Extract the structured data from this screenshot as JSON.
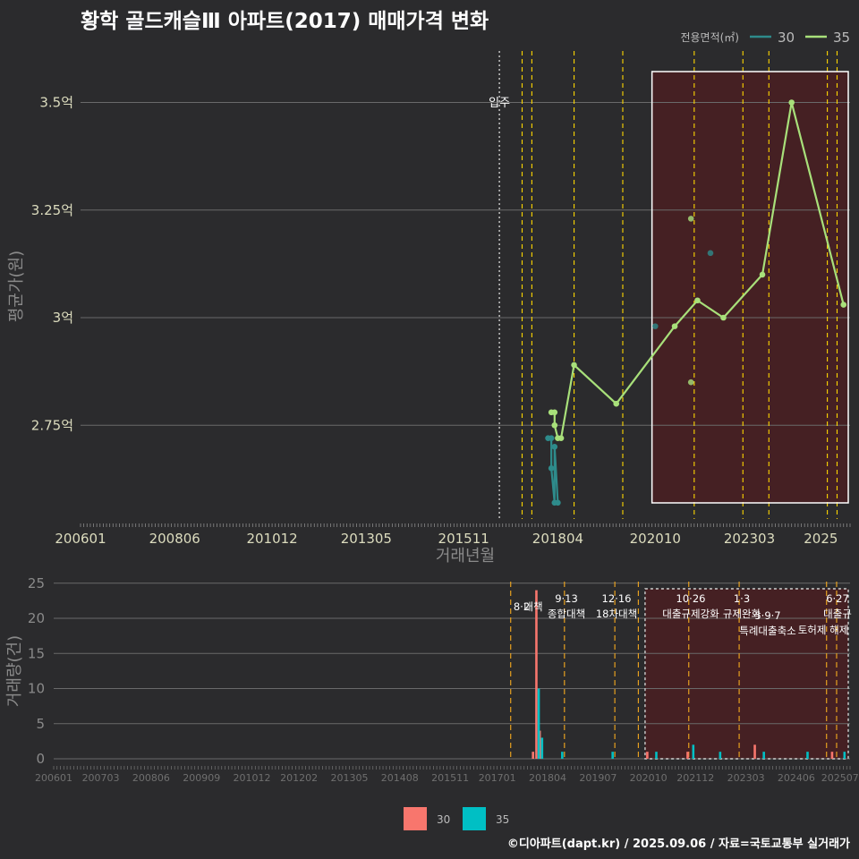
{
  "title": "황학 골드캐슬Ⅲ 아파트(2017) 매매가격 변화",
  "footer": "©디아파트(dapt.kr) / 2025.09.06 / 자료=국토교통부 실거래가",
  "colors": {
    "background": "#2b2b2d",
    "series_30_price": "#2e8b8b",
    "series_35_price": "#a8e07a",
    "series_30_volume": "#f8766d",
    "series_35_volume": "#00bfc4",
    "policy_line_top": "#ffd700",
    "policy_line_bottom": "#e6a020",
    "highlight_fill": "#4a1f22"
  },
  "price_chart": {
    "ylabel": "평균가(원)",
    "xlabel": "거래년월",
    "legend_title": "전용면적(㎡)",
    "legend": [
      "30",
      "35"
    ],
    "y_ticks": [
      {
        "v": 2.75,
        "label": "2.75억"
      },
      {
        "v": 3.0,
        "label": "3억"
      },
      {
        "v": 3.25,
        "label": "3.25억"
      },
      {
        "v": 3.5,
        "label": "3.5억"
      }
    ],
    "x_ticks": [
      "200601",
      "200806",
      "201012",
      "201305",
      "201511",
      "201804",
      "202010",
      "202303",
      "2025"
    ],
    "ann_move_in": "입주"
  },
  "volume_chart": {
    "ylabel": "거래량(건)",
    "y_ticks": [
      "0",
      "5",
      "10",
      "15",
      "20",
      "25"
    ],
    "x_ticks": [
      "200601",
      "200703",
      "200806",
      "200909",
      "201012",
      "201202",
      "201305",
      "201408",
      "201511",
      "201701",
      "201804",
      "201907",
      "202010",
      "202112",
      "202303",
      "202406",
      "202507"
    ],
    "legend": [
      "30",
      "35"
    ],
    "annotations": [
      {
        "date": "8·2",
        "text": "대책"
      },
      {
        "date": "9·13",
        "text": "종합대책"
      },
      {
        "date": "12·16",
        "text": "18차대책"
      },
      {
        "date": "10·26",
        "text": "대출규제강화"
      },
      {
        "date": "1·3",
        "text": "규제완화"
      },
      {
        "date": "5·9·7",
        "text": "특례대출축소"
      },
      {
        "date": "",
        "text": "토허제 해제"
      },
      {
        "date": "6·27",
        "text": "대출규"
      }
    ]
  },
  "chart_data": [
    {
      "type": "line",
      "title": "황학 골드캐슬Ⅲ 아파트(2017) 매매가격 변화",
      "xlabel": "거래년월",
      "ylabel": "평균가(원)",
      "x_range": [
        "2006-01",
        "2025-09"
      ],
      "y_unit": "억",
      "series": [
        {
          "name": "30",
          "points": [
            [
              "2018-01",
              2.72
            ],
            [
              "2018-02",
              2.72
            ],
            [
              "2018-02",
              2.65
            ],
            [
              "2018-03",
              2.57
            ],
            [
              "2018-03",
              2.7
            ],
            [
              "2018-04",
              2.57
            ]
          ]
        },
        {
          "name": "35",
          "points": [
            [
              "2018-02",
              2.78
            ],
            [
              "2018-03",
              2.78
            ],
            [
              "2018-03",
              2.75
            ],
            [
              "2018-04",
              2.72
            ],
            [
              "2018-05",
              2.72
            ],
            [
              "2018-09",
              2.89
            ],
            [
              "2019-10",
              2.8
            ],
            [
              "2021-04",
              2.98
            ],
            [
              "2021-11",
              3.04
            ],
            [
              "2022-07",
              3.0
            ],
            [
              "2023-07",
              3.1
            ],
            [
              "2024-04",
              3.5
            ],
            [
              "2025-08",
              3.03
            ]
          ]
        }
      ],
      "scatter_points": [
        {
          "series": "30",
          "x": "2020-10",
          "y": 2.98
        },
        {
          "series": "30",
          "x": "2022-03",
          "y": 3.15
        },
        {
          "series": "35",
          "x": "2021-09",
          "y": 3.23
        },
        {
          "series": "35",
          "x": "2021-09",
          "y": 2.85
        }
      ],
      "vlines": [
        "2017-05",
        "2017-08",
        "2018-09",
        "2019-12",
        "2021-10",
        "2023-01",
        "2023-09",
        "2025-03",
        "2025-06"
      ],
      "move_in_date": "2016-10",
      "highlight_range": [
        "2020-09",
        "2025-09"
      ]
    },
    {
      "type": "bar",
      "ylabel": "거래량(건)",
      "ylim": [
        0,
        25
      ],
      "series": [
        {
          "name": "30",
          "points": [
            [
              "2017-12",
              1
            ],
            [
              "2018-01",
              24
            ],
            [
              "2018-02",
              4
            ],
            [
              "2020-10",
              1
            ],
            [
              "2021-10",
              1
            ],
            [
              "2023-06",
              2
            ],
            [
              "2025-05",
              1
            ]
          ]
        },
        {
          "name": "35",
          "points": [
            [
              "2018-01",
              10
            ],
            [
              "2018-02",
              3
            ],
            [
              "2018-08",
              1
            ],
            [
              "2019-11",
              1
            ],
            [
              "2020-12",
              1
            ],
            [
              "2021-11",
              2
            ],
            [
              "2022-07",
              1
            ],
            [
              "2023-08",
              1
            ],
            [
              "2024-09",
              1
            ],
            [
              "2025-08",
              1
            ]
          ]
        }
      ],
      "vlines": [
        "2017-05",
        "2018-09",
        "2019-12",
        "2020-07",
        "2021-10",
        "2023-01",
        "2025-03",
        "2025-06"
      ],
      "highlight_range": [
        "2020-09",
        "2025-09"
      ]
    }
  ]
}
